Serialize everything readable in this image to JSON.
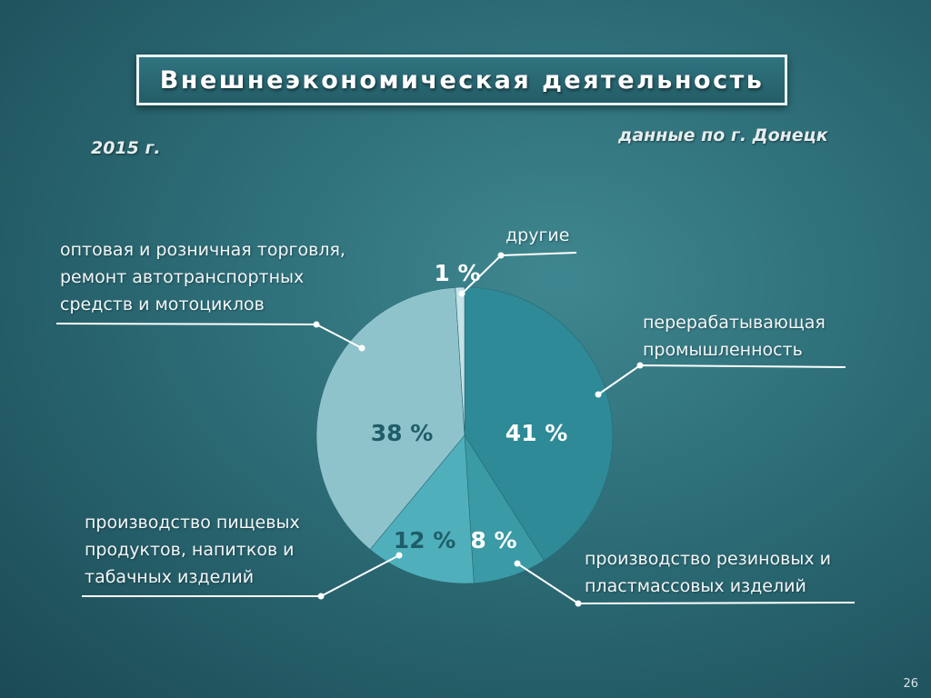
{
  "header": {
    "title": "Внешнеэкономическая деятельность",
    "year": "2015 г.",
    "source": "данные по г. Донецк"
  },
  "footer": {
    "page_number": "26"
  },
  "chart_data": {
    "type": "pie",
    "title": "Внешнеэкономическая деятельность",
    "slices": [
      {
        "label_lines": [
          "перерабатывающая",
          "промышленность"
        ],
        "value": 41,
        "value_label": "41 %",
        "color": "#2d8a96",
        "text_color": "#ffffff"
      },
      {
        "label_lines": [
          "производство резиновых и",
          "пластмассовых изделий"
        ],
        "value": 8,
        "value_label": "8 %",
        "color": "#3a9aa5",
        "text_color": "#ffffff"
      },
      {
        "label_lines": [
          "производство пищевых",
          "продуктов, напитков и",
          "табачных изделий"
        ],
        "value": 12,
        "value_label": "12 %",
        "color": "#4fb0bc",
        "text_color": "#1f5d69"
      },
      {
        "label_lines": [
          "оптовая и розничная торговля,",
          "ремонт автотранспортных",
          "средств и мотоциклов"
        ],
        "value": 38,
        "value_label": "38 %",
        "color": "#8fc3cb",
        "text_color": "#1f5d69"
      },
      {
        "label_lines": [
          "другие"
        ],
        "value": 1,
        "value_label": "1 %",
        "color": "#c6e2e6",
        "text_color": "#ffffff"
      }
    ]
  }
}
